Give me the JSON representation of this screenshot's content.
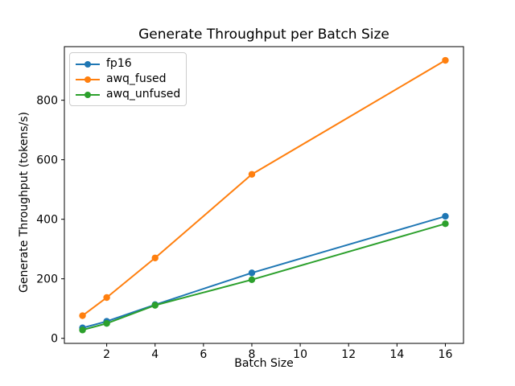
{
  "chart_data": {
    "type": "line",
    "title": "Generate Throughput per Batch Size",
    "xlabel": "Batch Size",
    "ylabel": "Generate Throughput (tokens/s)",
    "x": [
      1,
      2,
      4,
      8,
      16
    ],
    "series": [
      {
        "name": "fp16",
        "color": "#1f77b4",
        "values": [
          35,
          57,
          113,
          220,
          410
        ]
      },
      {
        "name": "awq_fused",
        "color": "#ff7f0e",
        "values": [
          76,
          137,
          270,
          551,
          934
        ]
      },
      {
        "name": "awq_unfused",
        "color": "#2ca02c",
        "values": [
          28,
          50,
          111,
          197,
          385
        ]
      }
    ],
    "xticks": [
      2,
      4,
      6,
      8,
      10,
      12,
      14,
      16
    ],
    "yticks": [
      0,
      200,
      400,
      600,
      800
    ],
    "xlim": [
      0.25,
      16.75
    ],
    "ylim": [
      -17,
      980
    ],
    "legend_position": "upper left",
    "grid": false,
    "marker": "o",
    "line_width": 2,
    "marker_radius": 4.2,
    "spine_color": "#000000",
    "background": "#ffffff"
  }
}
